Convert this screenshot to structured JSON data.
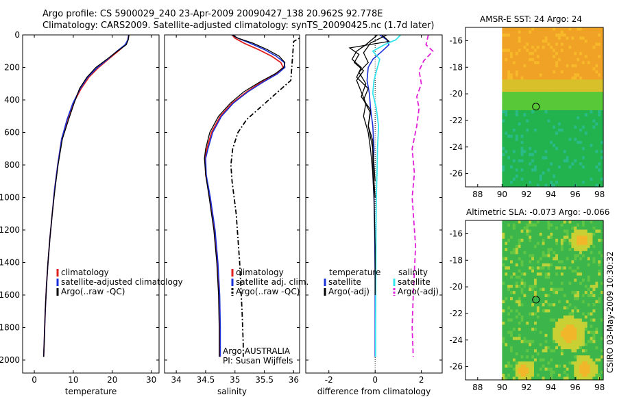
{
  "header": {
    "line1": "Argo profile: CS 5900029_240 23-Apr-2009 20090427_138 20.962S 92.778E",
    "line2": "Climatology: CARS2009. Satellite-adjusted climatology: synTS_20090425.nc (1.7d later)"
  },
  "side_label": "CSIRO 03-May-2009 10:30:32",
  "colors": {
    "climatology": "#e0201c",
    "satellite": "#1a30d8",
    "argo": "#000000",
    "sat_salinity": "#35e6ee",
    "argo_salinity": "#e020d8"
  },
  "chart_data": [
    {
      "type": "line",
      "xlabel": "temperature",
      "ylabel": "",
      "xlim": [
        -3,
        32
      ],
      "ylim": [
        2080,
        0
      ],
      "xticks": [
        0,
        10,
        20,
        30
      ],
      "yticks": [
        0,
        200,
        400,
        600,
        800,
        1000,
        1200,
        1400,
        1600,
        1800,
        2000
      ],
      "legend": [
        "climatology",
        "satellite-adjusted climatology",
        "Argo(..raw -QC)"
      ],
      "legend_position": "bottom-right",
      "series": [
        {
          "name": "climatology",
          "color": "#e0201c",
          "width": 1.8,
          "dash": "",
          "x": [
            24.2,
            24.0,
            23.4,
            21.5,
            19.0,
            16.5,
            14.0,
            12.0,
            10.0,
            8.5,
            7.0,
            6.0,
            5.2,
            4.6,
            4.0,
            3.5,
            3.1,
            2.8,
            2.6,
            2.4
          ],
          "y": [
            0,
            30,
            60,
            100,
            150,
            200,
            260,
            330,
            420,
            520,
            640,
            800,
            950,
            1100,
            1250,
            1400,
            1550,
            1700,
            1850,
            1980
          ]
        },
        {
          "name": "satellite-adjusted climatology",
          "color": "#1a30d8",
          "width": 1.6,
          "dash": "",
          "x": [
            24.2,
            24.0,
            23.3,
            21.2,
            18.8,
            16.2,
            13.7,
            11.8,
            9.9,
            8.4,
            7.0,
            6.0,
            5.2,
            4.6,
            4.0,
            3.5,
            3.1,
            2.8,
            2.6,
            2.4
          ],
          "y": [
            0,
            30,
            60,
            100,
            150,
            200,
            260,
            330,
            420,
            520,
            640,
            800,
            950,
            1100,
            1250,
            1400,
            1550,
            1700,
            1850,
            1980
          ]
        },
        {
          "name": "Argo(..raw -QC)",
          "color": "#000000",
          "width": 1.3,
          "dash": "",
          "x": [
            24.3,
            24.1,
            23.6,
            21.3,
            18.6,
            15.8,
            13.5,
            11.6,
            10.2,
            8.8,
            7.2,
            6.1,
            5.3,
            4.6,
            4.0,
            3.5,
            3.1,
            2.8,
            2.6,
            2.4
          ],
          "y": [
            0,
            30,
            60,
            100,
            150,
            200,
            260,
            330,
            420,
            520,
            640,
            800,
            950,
            1100,
            1250,
            1400,
            1550,
            1700,
            1850,
            1980
          ]
        }
      ]
    },
    {
      "type": "line",
      "xlabel": "salinity",
      "ylabel": "",
      "xlim": [
        33.8,
        36.1
      ],
      "ylim": [
        2080,
        0
      ],
      "xticks": [
        34,
        34.5,
        35,
        35.5,
        36
      ],
      "yticks": [
        0,
        200,
        400,
        600,
        800,
        1000,
        1200,
        1400,
        1600,
        1800,
        2000
      ],
      "legend": [
        "climatology",
        "satellite adj. clim.",
        "Argo(..raw -QC)"
      ],
      "legend_position": "bottom-right",
      "annotation": [
        "Argo AUSTRALIA",
        "PI: Susan Wijffels"
      ],
      "series": [
        {
          "name": "climatology",
          "color": "#e0201c",
          "width": 1.8,
          "dash": "",
          "x": [
            34.95,
            35.0,
            35.15,
            35.4,
            35.62,
            35.78,
            35.82,
            35.7,
            35.45,
            35.2,
            34.95,
            34.75,
            34.6,
            34.52,
            34.49,
            34.5,
            34.57,
            34.65,
            34.7,
            34.73,
            34.74,
            34.74
          ],
          "y": [
            0,
            20,
            50,
            90,
            130,
            170,
            200,
            240,
            290,
            350,
            420,
            500,
            600,
            700,
            760,
            860,
            1000,
            1200,
            1400,
            1600,
            1800,
            1980
          ]
        },
        {
          "name": "satellite adj. clim.",
          "color": "#1a30d8",
          "width": 1.6,
          "dash": "",
          "x": [
            34.95,
            35.05,
            35.25,
            35.5,
            35.7,
            35.84,
            35.85,
            35.72,
            35.48,
            35.22,
            34.97,
            34.77,
            34.62,
            34.54,
            34.5,
            34.51,
            34.58,
            34.66,
            34.71,
            34.74,
            34.75,
            34.75
          ],
          "y": [
            0,
            20,
            50,
            90,
            130,
            170,
            200,
            240,
            290,
            350,
            420,
            500,
            600,
            700,
            760,
            860,
            1000,
            1200,
            1400,
            1600,
            1800,
            1980
          ]
        },
        {
          "name": "Argo(..raw -QC)",
          "color": "#000000",
          "width": 1.3,
          "dash": "",
          "x": [
            34.95,
            35.05,
            35.3,
            35.55,
            35.75,
            35.85,
            35.83,
            35.68,
            35.42,
            35.15,
            34.92,
            34.72,
            34.57,
            34.5,
            34.48,
            34.5,
            34.56,
            34.64,
            34.69,
            34.72,
            34.73,
            34.73
          ],
          "y": [
            0,
            20,
            50,
            90,
            130,
            170,
            200,
            240,
            290,
            350,
            420,
            500,
            600,
            700,
            760,
            860,
            1000,
            1200,
            1400,
            1600,
            1800,
            1980
          ]
        },
        {
          "name": "",
          "color": "#000000",
          "width": 1.8,
          "dash": "7,3,2,3",
          "x": [
            36.2,
            36.0,
            35.95,
            35.7,
            35.45,
            35.2,
            35.05,
            34.96,
            34.93,
            34.95,
            35.02,
            35.08,
            35.12,
            35.14,
            35.14
          ],
          "y": [
            0,
            40,
            280,
            360,
            440,
            520,
            600,
            700,
            800,
            900,
            1100,
            1400,
            1700,
            1900,
            1980
          ]
        }
      ]
    },
    {
      "type": "line",
      "xlabel": "difference from climatology",
      "ylabel": "",
      "xlim": [
        -3.0,
        2.9
      ],
      "ylim": [
        2080,
        0
      ],
      "xticks": [
        -2,
        0,
        2
      ],
      "yticks": [
        0,
        200,
        400,
        600,
        800,
        1000,
        1200,
        1400,
        1600,
        1800,
        2000
      ],
      "legend": [
        "temperature",
        "satellite",
        "Argo(-adj)",
        "salinity",
        "satellite",
        "Argo(-adj)"
      ],
      "legend_position": "bottom",
      "series": [
        {
          "name": "temperature satellite",
          "color": "#1a30d8",
          "width": 1.6,
          "dash": "",
          "x": [
            0.2,
            0.5,
            0.6,
            0.3,
            -0.1,
            -0.3,
            -0.35,
            -0.25,
            -0.2,
            -0.1,
            -0.05,
            -0.1,
            -0.05,
            -0.02,
            0,
            0,
            0
          ],
          "y": [
            0,
            30,
            60,
            100,
            150,
            200,
            280,
            360,
            450,
            560,
            700,
            850,
            1000,
            1200,
            1500,
            1800,
            1980
          ]
        },
        {
          "name": "salinity satellite",
          "color": "#35e6ee",
          "width": 1.8,
          "dash": "",
          "x": [
            1.1,
            0.9,
            0.4,
            -0.1,
            0.2,
            0.1,
            -0.05,
            -0.1,
            0.05,
            0.15,
            0.1,
            0.08,
            0.05,
            0.04,
            0.03,
            0.02,
            0.02
          ],
          "y": [
            0,
            30,
            60,
            100,
            150,
            200,
            280,
            360,
            450,
            560,
            700,
            850,
            1000,
            1200,
            1500,
            1800,
            1980
          ]
        },
        {
          "name": "Argo(-adj) temperature 1",
          "color": "#000000",
          "width": 1.3,
          "dash": "",
          "x": [
            0.3,
            0.6,
            -1.1,
            -0.7,
            -0.9,
            -0.5,
            -0.8,
            -0.6,
            -0.4,
            -0.5,
            -0.3,
            -0.2,
            -0.1,
            -0.05,
            0,
            0
          ],
          "y": [
            0,
            40,
            80,
            120,
            170,
            220,
            280,
            350,
            420,
            500,
            600,
            700,
            850,
            1000,
            1300,
            1600
          ]
        },
        {
          "name": "Argo(-adj) temperature 2",
          "color": "#000000",
          "width": 1.3,
          "dash": "",
          "x": [
            0.1,
            -0.4,
            -0.8,
            -1.0,
            -0.6,
            -0.8,
            -0.3,
            -0.5,
            -0.2,
            -0.3,
            -0.1,
            -0.1,
            0
          ],
          "y": [
            0,
            60,
            100,
            150,
            200,
            260,
            330,
            400,
            480,
            560,
            650,
            800,
            1000
          ]
        },
        {
          "name": "Argo(-adj) temperature 3",
          "color": "#000000",
          "width": 1.3,
          "dash": "",
          "x": [
            0.5,
            -0.2,
            -0.5,
            -0.3,
            -0.7,
            -0.4,
            -0.6,
            -0.2,
            -0.3,
            -0.1,
            0
          ],
          "y": [
            0,
            50,
            110,
            170,
            230,
            300,
            380,
            460,
            560,
            700,
            900
          ]
        },
        {
          "name": "Argo(-adj) salinity",
          "color": "#e020d8",
          "width": 1.8,
          "dash": "7,4",
          "x": [
            2.3,
            2.2,
            2.5,
            2.1,
            1.9,
            2.0,
            1.8,
            1.9,
            1.8,
            1.6,
            1.7,
            1.6,
            1.75,
            1.65,
            1.6,
            1.65
          ],
          "y": [
            0,
            60,
            100,
            160,
            220,
            300,
            380,
            450,
            560,
            700,
            850,
            1000,
            1300,
            1600,
            1800,
            1980
          ]
        }
      ]
    },
    {
      "type": "heatmap",
      "title": "AMSR-E SST: 24 Argo: 24",
      "xlim": [
        87,
        98.3
      ],
      "ylim": [
        -27,
        -15
      ],
      "xticks": [
        88,
        90,
        92,
        94,
        96,
        98
      ],
      "yticks": [
        -16,
        -18,
        -20,
        -22,
        -24,
        -26
      ],
      "marker": {
        "lon": 92.778,
        "lat": -20.962
      }
    },
    {
      "type": "heatmap",
      "title": "Altimetric SLA: -0.073 Argo: -0.066",
      "xlim": [
        87,
        98.3
      ],
      "ylim": [
        -27,
        -15
      ],
      "xticks": [
        88,
        90,
        92,
        94,
        96,
        98
      ],
      "yticks": [
        -16,
        -18,
        -20,
        -22,
        -24,
        -26
      ],
      "marker": {
        "lon": 92.778,
        "lat": -20.962
      }
    }
  ]
}
